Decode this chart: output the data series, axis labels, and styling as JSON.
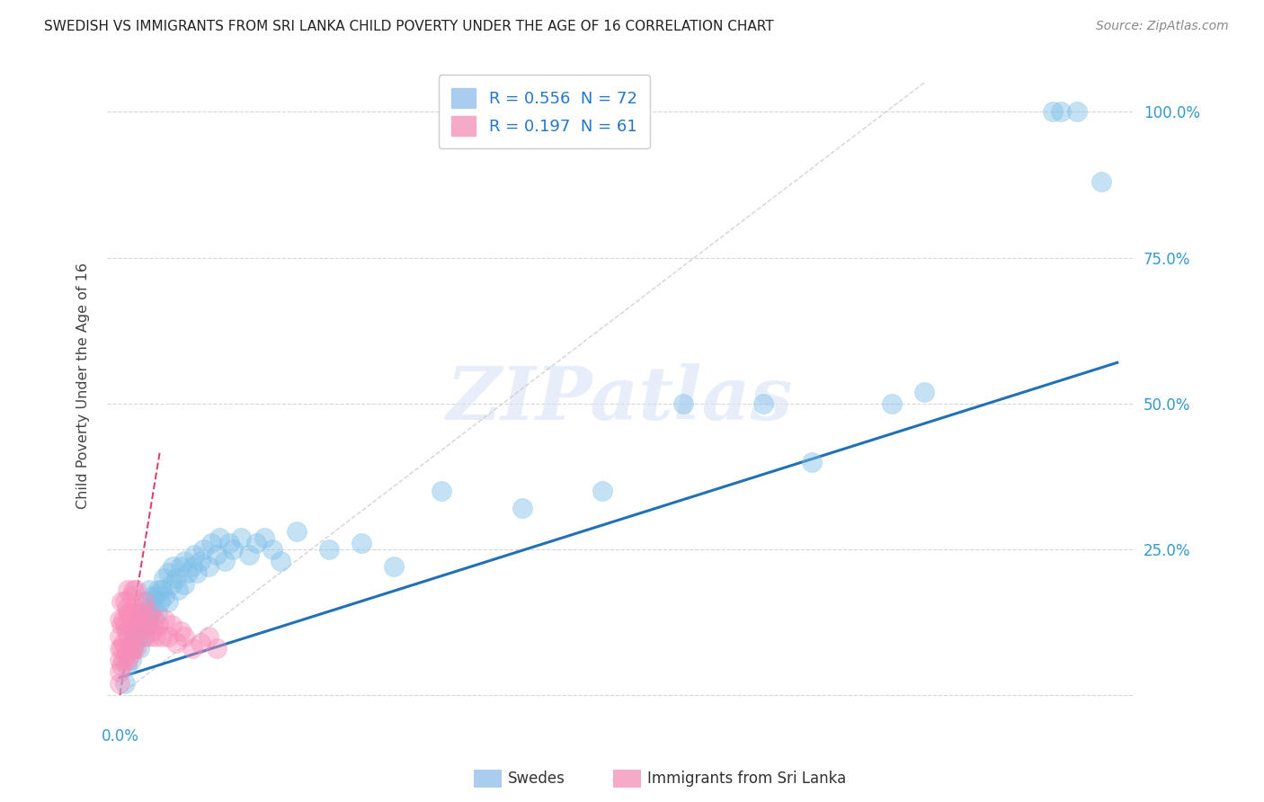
{
  "title": "SWEDISH VS IMMIGRANTS FROM SRI LANKA CHILD POVERTY UNDER THE AGE OF 16 CORRELATION CHART",
  "source": "Source: ZipAtlas.com",
  "ylabel": "Child Poverty Under the Age of 16",
  "xlim": [
    -0.008,
    0.63
  ],
  "ylim": [
    -0.04,
    1.1
  ],
  "xtick_pos": [
    0.0
  ],
  "xtick_labels": [
    "0.0%"
  ],
  "ytick_pos": [
    0.0,
    0.25,
    0.5,
    0.75,
    1.0
  ],
  "ytick_labels": [
    "",
    "25.0%",
    "50.0%",
    "75.0%",
    "100.0%"
  ],
  "swedes_R": 0.556,
  "swedes_N": 72,
  "immigrants_R": 0.197,
  "immigrants_N": 61,
  "swedes_color": "#7fbfe8",
  "swedes_edge_color": "#7fbfe8",
  "immigrants_color": "#f78db8",
  "immigrants_edge_color": "#f78db8",
  "swedes_line_color": "#2171b5",
  "immigrants_line_color": "#d4315a",
  "gray_line_color": "#cccccc",
  "grid_color": "#cccccc",
  "watermark": "ZIPatlas",
  "blue_line_x0": 0.0,
  "blue_line_y0": 0.03,
  "blue_line_x1": 0.62,
  "blue_line_y1": 0.57,
  "red_line_x0": 0.0,
  "red_line_y0": 0.0,
  "red_line_x1": 0.025,
  "red_line_y1": 0.42,
  "gray_line_x0": 0.0,
  "gray_line_y0": 0.0,
  "gray_line_x1": 0.5,
  "gray_line_y1": 1.05,
  "swedes_x": [
    0.003,
    0.004,
    0.007,
    0.008,
    0.008,
    0.009,
    0.01,
    0.012,
    0.012,
    0.013,
    0.014,
    0.015,
    0.016,
    0.016,
    0.017,
    0.018,
    0.018,
    0.019,
    0.02,
    0.02,
    0.021,
    0.022,
    0.023,
    0.024,
    0.025,
    0.026,
    0.027,
    0.028,
    0.03,
    0.03,
    0.032,
    0.033,
    0.035,
    0.036,
    0.038,
    0.04,
    0.04,
    0.042,
    0.045,
    0.046,
    0.048,
    0.05,
    0.052,
    0.055,
    0.057,
    0.06,
    0.062,
    0.065,
    0.068,
    0.07,
    0.075,
    0.08,
    0.085,
    0.09,
    0.095,
    0.1,
    0.11,
    0.13,
    0.15,
    0.17,
    0.2,
    0.25,
    0.3,
    0.35,
    0.4,
    0.43,
    0.48,
    0.5,
    0.58,
    0.585,
    0.595,
    0.61
  ],
  "swedes_y": [
    0.02,
    0.05,
    0.06,
    0.08,
    0.11,
    0.09,
    0.1,
    0.08,
    0.12,
    0.11,
    0.14,
    0.1,
    0.13,
    0.16,
    0.12,
    0.15,
    0.18,
    0.14,
    0.12,
    0.17,
    0.15,
    0.17,
    0.14,
    0.18,
    0.16,
    0.18,
    0.2,
    0.17,
    0.16,
    0.21,
    0.19,
    0.22,
    0.2,
    0.18,
    0.22,
    0.19,
    0.23,
    0.21,
    0.22,
    0.24,
    0.21,
    0.23,
    0.25,
    0.22,
    0.26,
    0.24,
    0.27,
    0.23,
    0.26,
    0.25,
    0.27,
    0.24,
    0.26,
    0.27,
    0.25,
    0.23,
    0.28,
    0.25,
    0.26,
    0.22,
    0.35,
    0.32,
    0.35,
    0.5,
    0.5,
    0.4,
    0.5,
    0.52,
    1.0,
    1.0,
    1.0,
    0.88
  ],
  "immigrants_x": [
    0.0,
    0.0,
    0.0,
    0.0,
    0.0,
    0.0,
    0.001,
    0.001,
    0.001,
    0.001,
    0.002,
    0.002,
    0.002,
    0.003,
    0.003,
    0.003,
    0.004,
    0.004,
    0.004,
    0.005,
    0.005,
    0.005,
    0.005,
    0.006,
    0.006,
    0.007,
    0.007,
    0.007,
    0.008,
    0.008,
    0.008,
    0.009,
    0.009,
    0.01,
    0.01,
    0.01,
    0.011,
    0.012,
    0.013,
    0.014,
    0.015,
    0.015,
    0.016,
    0.017,
    0.018,
    0.019,
    0.02,
    0.021,
    0.022,
    0.024,
    0.026,
    0.028,
    0.03,
    0.032,
    0.035,
    0.038,
    0.04,
    0.045,
    0.05,
    0.055,
    0.06
  ],
  "immigrants_y": [
    0.02,
    0.04,
    0.06,
    0.08,
    0.1,
    0.13,
    0.05,
    0.08,
    0.12,
    0.16,
    0.06,
    0.09,
    0.13,
    0.08,
    0.12,
    0.16,
    0.07,
    0.11,
    0.15,
    0.06,
    0.1,
    0.14,
    0.18,
    0.08,
    0.14,
    0.07,
    0.12,
    0.17,
    0.08,
    0.13,
    0.18,
    0.1,
    0.15,
    0.08,
    0.13,
    0.18,
    0.11,
    0.14,
    0.12,
    0.15,
    0.1,
    0.16,
    0.13,
    0.12,
    0.1,
    0.14,
    0.11,
    0.13,
    0.1,
    0.12,
    0.1,
    0.13,
    0.1,
    0.12,
    0.09,
    0.11,
    0.1,
    0.08,
    0.09,
    0.1,
    0.08
  ],
  "legend_swedes_label": "R = 0.556  N = 72",
  "legend_immigrants_label": "R = 0.197  N = 61",
  "bottom_legend_swedes": "Swedes",
  "bottom_legend_immigrants": "Immigrants from Sri Lanka"
}
